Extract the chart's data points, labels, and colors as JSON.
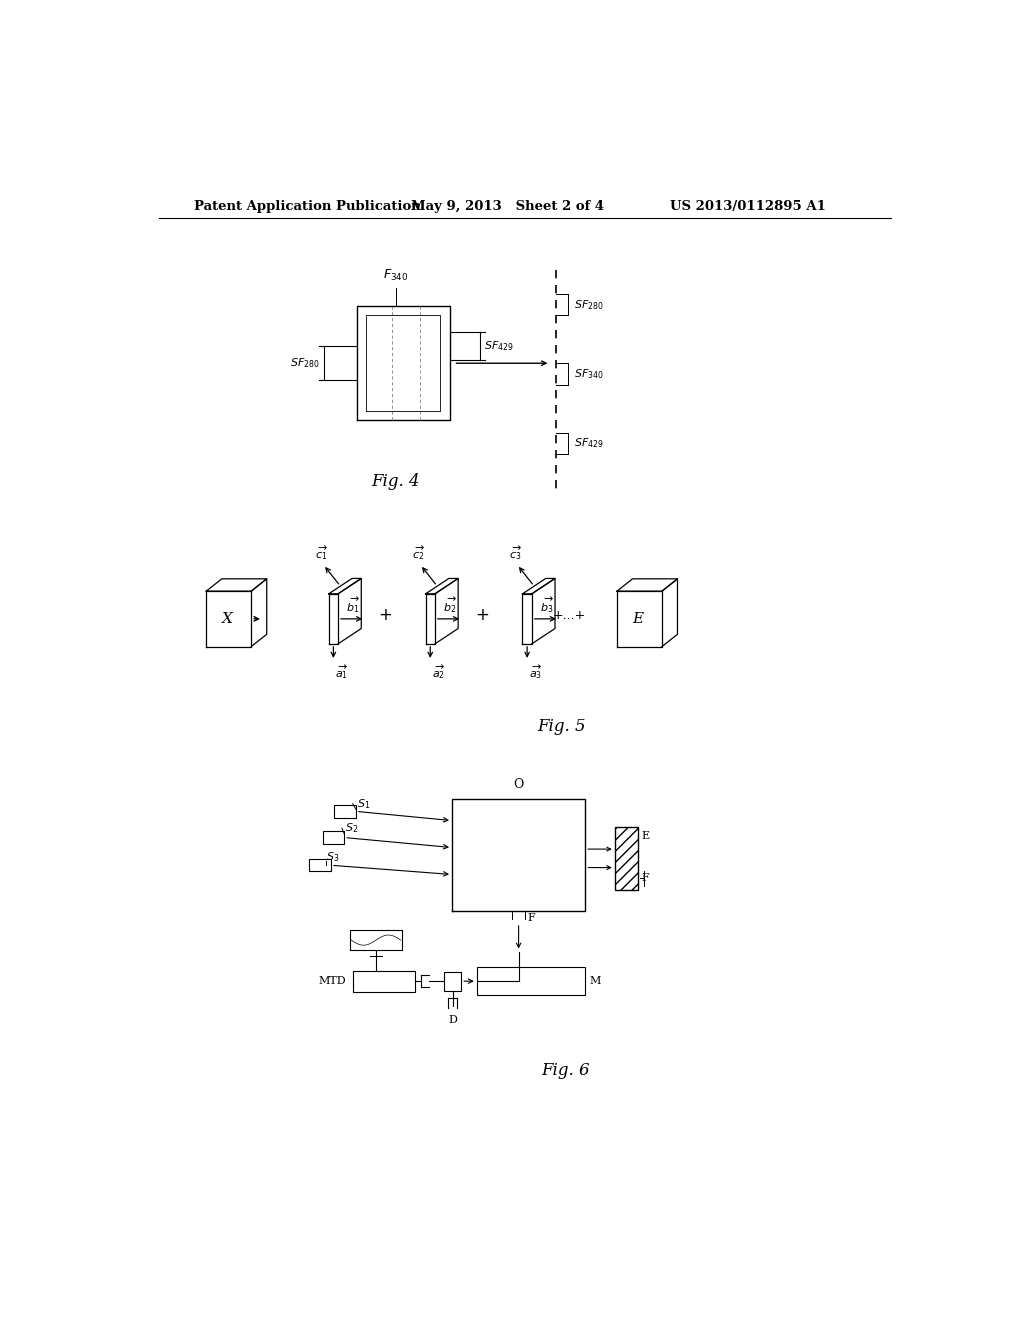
{
  "bg_color": "#ffffff",
  "header_text1": "Patent Application Publication",
  "header_text2": "May 9, 2013   Sheet 2 of 4",
  "header_text3": "US 2013/0112895 A1",
  "fig_label_size": 12,
  "annotation_size": 8,
  "header_size": 9.5
}
